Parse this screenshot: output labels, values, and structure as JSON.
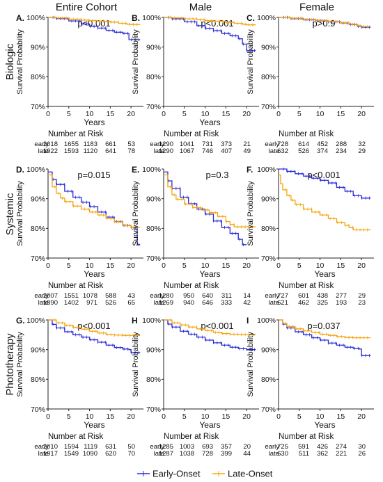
{
  "column_titles": [
    "Entire Cohort",
    "Male",
    "Female"
  ],
  "row_titles": [
    "Biologic",
    "Systemic",
    "Phototherapy"
  ],
  "legend": {
    "items": [
      {
        "label": "Early-Onset",
        "color": "#2b2bd9"
      },
      {
        "label": "Late-Onset",
        "color": "#f5a40c"
      }
    ]
  },
  "chart_data": [
    {
      "id": "A",
      "tag": "A.",
      "type": "line",
      "title": "",
      "xlabel": "Years",
      "ylabel": "Survival Probability",
      "pvalue": "p<0.001",
      "xlim": [
        0,
        23
      ],
      "xticks": [
        0,
        5,
        10,
        15,
        20
      ],
      "ylim": [
        70,
        100
      ],
      "yticks": [
        "70%",
        "80%",
        "90%",
        "100%"
      ],
      "grid": false,
      "series": [
        {
          "name": "Early-Onset",
          "color": "#2b2bd9",
          "x": [
            0,
            2,
            5,
            8,
            10,
            12,
            14,
            16,
            18,
            19.5,
            20.5,
            22.2
          ],
          "y": [
            100,
            99.6,
            98.8,
            97.8,
            97.0,
            96.4,
            95.6,
            95.0,
            94.6,
            92.5,
            92.5,
            92.5
          ]
        },
        {
          "name": "Late-Onset",
          "color": "#f5a40c",
          "x": [
            0,
            2,
            5,
            8,
            10,
            12,
            15,
            17,
            19,
            20,
            22.2
          ],
          "y": [
            100,
            99.8,
            99.4,
            99.1,
            98.9,
            98.7,
            98.4,
            98.0,
            97.7,
            97.6,
            97.6
          ]
        }
      ],
      "risk_table": {
        "title": "Number at Risk",
        "rows": [
          {
            "label": "early",
            "values": [
              "2018",
              "1655",
              "1183",
              "661",
              "53"
            ]
          },
          {
            "label": "late",
            "values": [
              "1922",
              "1593",
              "1120",
              "641",
              "78"
            ]
          }
        ]
      }
    },
    {
      "id": "B",
      "tag": "B.",
      "type": "line",
      "title": "",
      "xlabel": "Years",
      "ylabel": "Survival Probability",
      "pvalue": "p<0.001",
      "xlim": [
        0,
        23
      ],
      "xticks": [
        0,
        5,
        10,
        15,
        20
      ],
      "ylim": [
        70,
        100
      ],
      "yticks": [
        "70%",
        "80%",
        "90%",
        "100%"
      ],
      "grid": false,
      "series": [
        {
          "name": "Early-Onset",
          "color": "#2b2bd9",
          "x": [
            0,
            2,
            5,
            8,
            10,
            12,
            14,
            16,
            18,
            19,
            20,
            22.2
          ],
          "y": [
            100,
            99.5,
            98.5,
            97.2,
            96.3,
            95.5,
            94.6,
            93.8,
            92.8,
            91.0,
            88.8,
            88.8
          ]
        },
        {
          "name": "Late-Onset",
          "color": "#f5a40c",
          "x": [
            0,
            2,
            5,
            8,
            10,
            12,
            15,
            17,
            19,
            20,
            22.2
          ],
          "y": [
            100,
            99.8,
            99.5,
            99.2,
            98.9,
            98.7,
            98.3,
            98.0,
            97.7,
            97.5,
            97.5
          ]
        }
      ],
      "risk_table": {
        "title": "Number at Risk",
        "rows": [
          {
            "label": "early",
            "values": [
              "1290",
              "1041",
              "731",
              "373",
              "21"
            ]
          },
          {
            "label": "late",
            "values": [
              "1290",
              "1067",
              "746",
              "407",
              "49"
            ]
          }
        ]
      }
    },
    {
      "id": "C",
      "tag": "C.",
      "type": "line",
      "title": "",
      "xlabel": "",
      "ylabel": "Survival Probability",
      "pvalue": "p>0.9",
      "xlim": [
        0,
        23
      ],
      "xticks": [
        0,
        5,
        10,
        15,
        20
      ],
      "ylim": [
        70,
        100
      ],
      "yticks": [
        "70%",
        "80%",
        "90%",
        "100%"
      ],
      "grid": false,
      "series": [
        {
          "name": "Early-Onset",
          "color": "#2b2bd9",
          "x": [
            0,
            3,
            6,
            9,
            12,
            15,
            17,
            19,
            20,
            22.2
          ],
          "y": [
            100,
            99.6,
            99.2,
            98.9,
            98.5,
            98.1,
            97.6,
            97.0,
            96.7,
            96.7
          ]
        },
        {
          "name": "Late-Onset",
          "color": "#f5a40c",
          "x": [
            0,
            3,
            6,
            9,
            12,
            15,
            17,
            19,
            20,
            22.2
          ],
          "y": [
            100,
            99.7,
            99.3,
            99.0,
            98.6,
            98.2,
            97.7,
            97.2,
            96.9,
            96.9
          ]
        }
      ],
      "risk_table": {
        "title": "Number at Risk",
        "rows": [
          {
            "label": "early",
            "values": [
              "728",
              "614",
              "452",
              "288",
              "32"
            ]
          },
          {
            "label": "late",
            "values": [
              "632",
              "526",
              "374",
              "234",
              "29"
            ]
          }
        ]
      }
    },
    {
      "id": "D",
      "tag": "D.",
      "type": "line",
      "title": "",
      "xlabel": "Years",
      "ylabel": "Survival Probability",
      "pvalue": "p=0.015",
      "xlim": [
        0,
        23
      ],
      "xticks": [
        0,
        5,
        10,
        15,
        20
      ],
      "ylim": [
        70,
        100
      ],
      "yticks": [
        "70%",
        "80%",
        "90%",
        "100%"
      ],
      "grid": false,
      "series": [
        {
          "name": "Early-Onset",
          "color": "#2b2bd9",
          "x": [
            0,
            1,
            2,
            4,
            6,
            8,
            10,
            12,
            14,
            16,
            18,
            20,
            21,
            21.5,
            22.2
          ],
          "y": [
            99,
            96.5,
            94.8,
            92.5,
            90.5,
            88.8,
            87.3,
            85.5,
            83.8,
            82.3,
            81.0,
            80.3,
            80.1,
            74.5,
            74.5
          ]
        },
        {
          "name": "Late-Onset",
          "color": "#f5a40c",
          "x": [
            0,
            1,
            2,
            3,
            4,
            6,
            8,
            10,
            12,
            14,
            16,
            18,
            20,
            22.2
          ],
          "y": [
            98,
            94.0,
            91.8,
            90.2,
            89.0,
            87.5,
            86.5,
            85.5,
            84.5,
            83.3,
            82.2,
            81.0,
            80.3,
            80.3
          ]
        }
      ],
      "risk_table": {
        "title": "Number at Risk",
        "rows": [
          {
            "label": "early",
            "values": [
              "2007",
              "1551",
              "1078",
              "588",
              "43"
            ]
          },
          {
            "label": "late",
            "values": [
              "1890",
              "1402",
              "971",
              "526",
              "65"
            ]
          }
        ]
      }
    },
    {
      "id": "E",
      "tag": "E.",
      "type": "line",
      "title": "",
      "xlabel": "Years",
      "ylabel": "Survival Probability",
      "pvalue": "p=0.3",
      "xlim": [
        0,
        23
      ],
      "xticks": [
        0,
        5,
        10,
        15,
        20
      ],
      "ylim": [
        70,
        100
      ],
      "yticks": [
        "70%",
        "80%",
        "90%",
        "100%"
      ],
      "grid": false,
      "series": [
        {
          "name": "Early-Onset",
          "color": "#2b2bd9",
          "x": [
            0,
            1,
            2,
            4,
            6,
            8,
            10,
            12,
            14,
            16,
            18,
            19,
            20
          ],
          "y": [
            99,
            96,
            93.5,
            90.5,
            88.3,
            86.5,
            84.8,
            82.5,
            80.3,
            78.3,
            76.3,
            74.5,
            74.5
          ]
        },
        {
          "name": "Late-Onset",
          "color": "#f5a40c",
          "x": [
            0,
            1,
            2,
            3,
            5,
            7,
            9,
            11,
            13,
            15,
            16,
            17,
            19,
            22.2
          ],
          "y": [
            98,
            94,
            91.3,
            89.8,
            88.2,
            87.0,
            86.2,
            85.3,
            84.0,
            82.3,
            81.3,
            80.5,
            80.5,
            80.5
          ]
        }
      ],
      "risk_table": {
        "title": "Number at Risk",
        "rows": [
          {
            "label": "early",
            "values": [
              "1280",
              "950",
              "640",
              "311",
              "14"
            ]
          },
          {
            "label": "late",
            "values": [
              "1269",
              "940",
              "646",
              "333",
              "42"
            ]
          }
        ]
      }
    },
    {
      "id": "F",
      "tag": "F.",
      "type": "line",
      "title": "",
      "xlabel": "Years",
      "ylabel": "Survival Probability",
      "pvalue": "p<0.001",
      "xlim": [
        0,
        23
      ],
      "xticks": [
        0,
        5,
        10,
        15,
        20
      ],
      "ylim": [
        70,
        100
      ],
      "yticks": [
        "70%",
        "80%",
        "90%",
        "100%"
      ],
      "grid": false,
      "series": [
        {
          "name": "Early-Onset",
          "color": "#2b2bd9",
          "x": [
            0,
            2,
            4,
            6,
            8,
            10,
            12,
            14,
            16,
            18,
            20,
            22.2
          ],
          "y": [
            100,
            99.2,
            98.4,
            97.6,
            96.9,
            96.2,
            95.3,
            93.8,
            92.5,
            91.0,
            90.2,
            90.2
          ]
        },
        {
          "name": "Late-Onset",
          "color": "#f5a40c",
          "x": [
            0,
            0.5,
            1,
            2,
            3,
            4,
            6,
            8,
            10,
            12,
            14,
            16,
            17,
            18,
            22.2
          ],
          "y": [
            98,
            95,
            93,
            91.0,
            89.5,
            88.0,
            86.5,
            85.5,
            84.5,
            83.3,
            82.0,
            81.0,
            80.3,
            79.5,
            79.5
          ]
        }
      ],
      "risk_table": {
        "title": "Number at Risk",
        "rows": [
          {
            "label": "early",
            "values": [
              "727",
              "601",
              "438",
              "277",
              "29"
            ]
          },
          {
            "label": "late",
            "values": [
              "621",
              "462",
              "325",
              "193",
              "23"
            ]
          }
        ]
      }
    },
    {
      "id": "G",
      "tag": "G.",
      "type": "line",
      "title": "",
      "xlabel": "Years",
      "ylabel": "Survival Probability",
      "pvalue": "p<0.001",
      "xlim": [
        0,
        23
      ],
      "xticks": [
        0,
        5,
        10,
        15,
        20
      ],
      "ylim": [
        70,
        100
      ],
      "yticks": [
        "70%",
        "80%",
        "90%",
        "100%"
      ],
      "grid": false,
      "series": [
        {
          "name": "Early-Onset",
          "color": "#2b2bd9",
          "x": [
            0,
            1,
            2,
            4,
            6,
            8,
            10,
            12,
            14,
            16,
            18,
            19.5,
            20,
            22.2
          ],
          "y": [
            100,
            98.5,
            97.3,
            96.0,
            95.0,
            94.2,
            93.3,
            92.5,
            91.5,
            90.7,
            90.2,
            90.0,
            89.0,
            89.0
          ]
        },
        {
          "name": "Late-Onset",
          "color": "#f5a40c",
          "x": [
            0,
            2,
            4,
            6,
            8,
            10,
            12,
            14,
            16,
            18,
            22.2
          ],
          "y": [
            100,
            99.0,
            98.2,
            97.5,
            96.9,
            96.2,
            95.6,
            95.1,
            94.9,
            94.8,
            94.8
          ]
        }
      ],
      "risk_table": {
        "title": "Number at Risk",
        "rows": [
          {
            "label": "early",
            "values": [
              "2010",
              "1594",
              "1119",
              "631",
              "50"
            ]
          },
          {
            "label": "late",
            "values": [
              "1917",
              "1549",
              "1090",
              "620",
              "70"
            ]
          }
        ]
      }
    },
    {
      "id": "H",
      "tag": "H",
      "type": "line",
      "title": "",
      "xlabel": "Years",
      "ylabel": "Survival Probability",
      "pvalue": "p<0.001",
      "xlim": [
        0,
        23
      ],
      "xticks": [
        0,
        5,
        10,
        15,
        20
      ],
      "ylim": [
        70,
        100
      ],
      "yticks": [
        "70%",
        "80%",
        "90%",
        "100%"
      ],
      "grid": false,
      "series": [
        {
          "name": "Early-Onset",
          "color": "#2b2bd9",
          "x": [
            0,
            1,
            2,
            4,
            6,
            8,
            10,
            12,
            14,
            16,
            18,
            20,
            22.2
          ],
          "y": [
            100,
            98.6,
            97.6,
            96.2,
            95.2,
            94.2,
            93.2,
            92.3,
            91.5,
            90.8,
            90.3,
            90.0,
            90.0
          ]
        },
        {
          "name": "Late-Onset",
          "color": "#f5a40c",
          "x": [
            0,
            2,
            4,
            6,
            8,
            10,
            12,
            14,
            16,
            18,
            22.2
          ],
          "y": [
            100,
            99.0,
            98.3,
            97.6,
            97.0,
            96.4,
            95.8,
            95.4,
            95.2,
            95.1,
            95.1
          ]
        }
      ],
      "risk_table": {
        "title": "Number at Risk",
        "rows": [
          {
            "label": "early",
            "values": [
              "1285",
              "1003",
              "693",
              "357",
              "20"
            ]
          },
          {
            "label": "late",
            "values": [
              "1287",
              "1038",
              "728",
              "399",
              "44"
            ]
          }
        ]
      }
    },
    {
      "id": "I",
      "tag": "I",
      "type": "line",
      "title": "",
      "xlabel": "Years",
      "ylabel": "Survival Probability",
      "pvalue": "p=0.037",
      "xlim": [
        0,
        23
      ],
      "xticks": [
        0,
        5,
        10,
        15,
        20
      ],
      "ylim": [
        70,
        100
      ],
      "yticks": [
        "70%",
        "80%",
        "90%",
        "100%"
      ],
      "grid": false,
      "series": [
        {
          "name": "Early-Onset",
          "color": "#2b2bd9",
          "x": [
            0,
            1,
            2,
            4,
            6,
            8,
            10,
            12,
            14,
            16,
            18,
            19.5,
            20,
            22.2
          ],
          "y": [
            100,
            98.6,
            97.3,
            96.0,
            95.0,
            94.0,
            93.2,
            92.2,
            91.5,
            90.8,
            90.4,
            90.2,
            88.0,
            88.0
          ]
        },
        {
          "name": "Late-Onset",
          "color": "#f5a40c",
          "x": [
            0,
            1,
            2,
            4,
            6,
            8,
            10,
            12,
            14,
            16,
            18,
            22.2
          ],
          "y": [
            100,
            98.8,
            97.8,
            97.0,
            96.3,
            95.8,
            95.2,
            94.8,
            94.4,
            94.1,
            94.0,
            94.0
          ]
        }
      ],
      "risk_table": {
        "title": "Number at Risk",
        "rows": [
          {
            "label": "early",
            "values": [
              "725",
              "591",
              "426",
              "274",
              "30"
            ]
          },
          {
            "label": "late",
            "values": [
              "630",
              "511",
              "362",
              "221",
              "26"
            ]
          }
        ]
      }
    }
  ]
}
